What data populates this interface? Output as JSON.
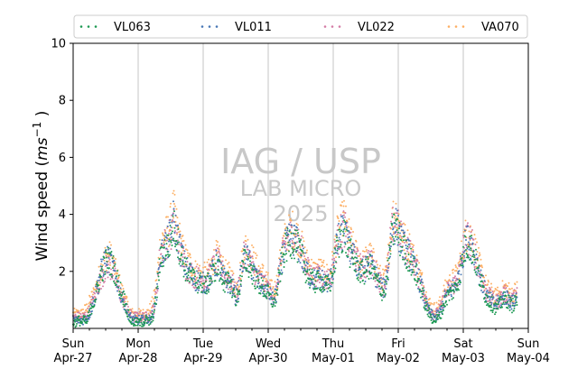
{
  "chart_data": {
    "type": "scatter",
    "title": "",
    "xlabel": "",
    "ylabel": "Wind speed ($ms^{-1}$)",
    "ylabel_parts": {
      "main": "Wind speed (",
      "base": "ms",
      "sup": "−1",
      "close": " )"
    },
    "ylim": [
      0,
      10
    ],
    "y_ticks": [
      2,
      4,
      6,
      8,
      10
    ],
    "xlim": [
      "2025-04-27 00:00",
      "2025-05-04 00:00"
    ],
    "x_ticks": [
      {
        "x": "2025-04-27",
        "day": "Sun",
        "date": "Apr-27"
      },
      {
        "x": "2025-04-28",
        "day": "Mon",
        "date": "Apr-28"
      },
      {
        "x": "2025-04-29",
        "day": "Tue",
        "date": "Apr-29"
      },
      {
        "x": "2025-04-30",
        "day": "Wed",
        "date": "Apr-30"
      },
      {
        "x": "2025-05-01",
        "day": "Thu",
        "date": "May-01"
      },
      {
        "x": "2025-05-02",
        "day": "Fri",
        "date": "May-02"
      },
      {
        "x": "2025-05-03",
        "day": "Sat",
        "date": "May-03"
      },
      {
        "x": "2025-05-04",
        "day": "Sun",
        "date": "May-04"
      }
    ],
    "grid": "vertical",
    "legend_position": "top",
    "watermark": {
      "line1": "IAG / USP",
      "line2": "LAB MICRO",
      "line3": "2025"
    },
    "x_hours": [
      0,
      1,
      2,
      3,
      4,
      5,
      6,
      7,
      8,
      9,
      10,
      11,
      12,
      13,
      14,
      15,
      16,
      17,
      18,
      19,
      20,
      21,
      22,
      23,
      24,
      25,
      26,
      27,
      28,
      29,
      30,
      31,
      32,
      33,
      34,
      35,
      36,
      37,
      38,
      39,
      40,
      41,
      42,
      43,
      44,
      45,
      46,
      47,
      48,
      49,
      50,
      51,
      52,
      53,
      54,
      55,
      56,
      57,
      58,
      59,
      60,
      61,
      62,
      63,
      64,
      65,
      66,
      67,
      68,
      69,
      70,
      71,
      72,
      73,
      74,
      75,
      76,
      77,
      78,
      79,
      80,
      81,
      82,
      83,
      84,
      85,
      86,
      87,
      88,
      89,
      90,
      91,
      92,
      93,
      94,
      95,
      96,
      97,
      98,
      99,
      100,
      101,
      102,
      103,
      104,
      105,
      106,
      107,
      108,
      109,
      110,
      111,
      112,
      113,
      114,
      115,
      116,
      117,
      118,
      119,
      120,
      121,
      122,
      123,
      124,
      125,
      126,
      127,
      128,
      129,
      130,
      131,
      132,
      133,
      134,
      135,
      136,
      137,
      138,
      139,
      140,
      141,
      142,
      143,
      144,
      145,
      146,
      147,
      148,
      149,
      150,
      151,
      152,
      153,
      154,
      155,
      156,
      157,
      158,
      159,
      160,
      161,
      162,
      163,
      164,
      165,
      166,
      167,
      168
    ],
    "series": [
      {
        "name": "VL063",
        "color": "#1a9850",
        "values": [
          0.2,
          0.2,
          0.3,
          0.2,
          0.3,
          0.2,
          0.5,
          0.8,
          1.0,
          1.4,
          1.8,
          2.1,
          2.3,
          2.4,
          2.3,
          2.1,
          1.8,
          1.5,
          1.2,
          1.0,
          0.6,
          0.3,
          0.2,
          0.2,
          0.2,
          0.2,
          0.2,
          0.3,
          0.2,
          0.3,
          0.6,
          1.3,
          2.3,
          2.6,
          2.8,
          2.9,
          3.1,
          3.6,
          3.3,
          2.9,
          2.5,
          2.2,
          2.0,
          1.9,
          1.8,
          1.7,
          1.6,
          1.6,
          1.5,
          1.5,
          1.6,
          1.8,
          2.0,
          2.2,
          2.0,
          1.8,
          1.6,
          1.6,
          1.6,
          1.3,
          1.0,
          1.2,
          1.8,
          2.3,
          2.4,
          2.2,
          2.0,
          1.8,
          1.6,
          1.5,
          1.4,
          1.3,
          1.2,
          1.0,
          0.9,
          1.1,
          1.7,
          2.3,
          2.7,
          2.9,
          3.0,
          3.1,
          3.0,
          2.8,
          2.6,
          2.3,
          2.0,
          1.8,
          1.7,
          1.6,
          1.6,
          1.7,
          1.6,
          1.5,
          1.5,
          1.6,
          2.0,
          2.6,
          3.0,
          3.2,
          3.4,
          3.0,
          2.7,
          2.5,
          2.3,
          2.1,
          2.0,
          1.9,
          2.0,
          2.2,
          2.1,
          1.9,
          1.7,
          1.5,
          1.3,
          1.3,
          1.8,
          2.8,
          3.4,
          3.6,
          3.3,
          3.0,
          2.8,
          2.6,
          2.5,
          2.3,
          2.0,
          1.8,
          1.5,
          1.2,
          0.8,
          0.6,
          0.4,
          0.3,
          0.3,
          0.4,
          0.6,
          0.9,
          1.1,
          1.2,
          1.3,
          1.4,
          1.6,
          2.0,
          2.6,
          2.9,
          3.0,
          2.8,
          2.5,
          2.2,
          1.8,
          1.5,
          1.2,
          1.0,
          0.9,
          0.8,
          0.7,
          0.8,
          0.9,
          1.0,
          1.0,
          0.9,
          0.8,
          0.9,
          1.0
        ]
      },
      {
        "name": "VL011",
        "color": "#4575b4",
        "values": [
          0.3,
          0.3,
          0.3,
          0.3,
          0.3,
          0.4,
          0.5,
          0.8,
          1.1,
          1.5,
          1.9,
          2.2,
          2.4,
          2.4,
          2.3,
          2.0,
          1.7,
          1.4,
          1.1,
          0.9,
          0.6,
          0.4,
          0.3,
          0.3,
          0.3,
          0.3,
          0.3,
          0.3,
          0.3,
          0.4,
          0.7,
          1.4,
          2.4,
          2.7,
          2.9,
          3.0,
          3.3,
          3.8,
          3.4,
          3.0,
          2.6,
          2.3,
          2.1,
          2.0,
          1.8,
          1.7,
          1.7,
          1.6,
          1.6,
          1.6,
          1.7,
          1.9,
          2.1,
          2.3,
          2.1,
          1.9,
          1.7,
          1.6,
          1.6,
          1.4,
          1.1,
          1.3,
          1.9,
          2.4,
          2.5,
          2.3,
          2.1,
          1.9,
          1.7,
          1.6,
          1.5,
          1.4,
          1.3,
          1.1,
          1.0,
          1.2,
          1.8,
          2.4,
          2.8,
          3.0,
          3.1,
          3.2,
          3.1,
          2.9,
          2.7,
          2.4,
          2.1,
          1.9,
          1.8,
          1.7,
          1.7,
          1.8,
          1.7,
          1.6,
          1.6,
          1.7,
          2.1,
          2.7,
          3.1,
          3.3,
          3.5,
          3.1,
          2.8,
          2.6,
          2.4,
          2.2,
          2.1,
          2.0,
          2.1,
          2.3,
          2.2,
          2.0,
          1.8,
          1.6,
          1.4,
          1.4,
          1.9,
          2.9,
          3.5,
          3.7,
          3.4,
          3.1,
          2.9,
          2.7,
          2.6,
          2.4,
          2.1,
          1.9,
          1.6,
          1.3,
          0.9,
          0.7,
          0.5,
          0.4,
          0.4,
          0.5,
          0.7,
          1.0,
          1.2,
          1.3,
          1.4,
          1.5,
          1.7,
          2.1,
          2.7,
          3.0,
          3.1,
          2.9,
          2.6,
          2.3,
          1.9,
          1.6,
          1.3,
          1.1,
          1.0,
          0.9,
          0.8,
          0.9,
          1.0,
          1.1,
          1.1,
          1.0,
          0.9,
          1.0,
          1.1
        ]
      },
      {
        "name": "VL022",
        "color": "#d47ba4",
        "values": [
          0.4,
          0.4,
          0.4,
          0.4,
          0.4,
          0.5,
          0.6,
          0.9,
          1.1,
          1.4,
          1.7,
          1.9,
          2.1,
          2.2,
          2.1,
          1.9,
          1.6,
          1.3,
          1.1,
          0.9,
          0.6,
          0.5,
          0.4,
          0.4,
          0.4,
          0.4,
          0.4,
          0.4,
          0.4,
          0.5,
          0.8,
          1.5,
          2.5,
          2.8,
          3.0,
          3.1,
          3.3,
          3.6,
          3.3,
          3.0,
          2.6,
          2.3,
          2.1,
          2.0,
          1.9,
          1.8,
          1.8,
          1.7,
          1.7,
          1.7,
          1.8,
          2.0,
          2.2,
          2.4,
          2.2,
          2.0,
          1.8,
          1.7,
          1.7,
          1.5,
          1.2,
          1.4,
          2.0,
          2.5,
          2.6,
          2.4,
          2.2,
          2.0,
          1.8,
          1.7,
          1.6,
          1.5,
          1.4,
          1.2,
          1.1,
          1.3,
          1.9,
          2.5,
          2.9,
          3.1,
          3.2,
          3.3,
          3.2,
          3.0,
          2.8,
          2.5,
          2.2,
          2.0,
          1.9,
          1.8,
          1.8,
          1.9,
          1.8,
          1.7,
          1.7,
          1.8,
          2.2,
          2.8,
          3.2,
          3.4,
          3.6,
          3.2,
          2.9,
          2.7,
          2.5,
          2.3,
          2.2,
          2.1,
          2.2,
          2.4,
          2.3,
          2.1,
          1.9,
          1.7,
          1.5,
          1.5,
          2.0,
          3.0,
          3.6,
          3.8,
          3.5,
          3.2,
          3.0,
          2.8,
          2.7,
          2.5,
          2.2,
          2.0,
          1.7,
          1.4,
          1.0,
          0.8,
          0.6,
          0.5,
          0.5,
          0.6,
          0.8,
          1.1,
          1.3,
          1.4,
          1.5,
          1.6,
          1.8,
          2.2,
          2.8,
          3.1,
          3.2,
          3.0,
          2.7,
          2.4,
          2.0,
          1.7,
          1.4,
          1.2,
          1.1,
          1.0,
          0.9,
          1.0,
          1.1,
          1.2,
          1.2,
          1.1,
          1.0,
          1.1,
          1.2
        ]
      },
      {
        "name": "VA070",
        "color": "#fdae61",
        "values": [
          0.5,
          0.5,
          0.5,
          0.5,
          0.6,
          0.7,
          0.9,
          1.1,
          1.3,
          1.6,
          2.0,
          2.3,
          2.5,
          2.6,
          2.5,
          2.2,
          1.9,
          1.6,
          1.3,
          1.1,
          0.8,
          0.6,
          0.5,
          0.5,
          0.5,
          0.5,
          0.5,
          0.5,
          0.6,
          0.8,
          1.1,
          1.8,
          2.8,
          3.1,
          3.3,
          3.4,
          3.7,
          4.2,
          3.7,
          3.3,
          2.9,
          2.6,
          2.4,
          2.3,
          2.1,
          2.0,
          2.0,
          1.9,
          1.9,
          1.9,
          2.0,
          2.2,
          2.4,
          2.6,
          2.4,
          2.2,
          2.0,
          1.9,
          1.9,
          1.7,
          1.4,
          1.6,
          2.2,
          2.8,
          2.9,
          2.7,
          2.5,
          2.3,
          2.1,
          2.0,
          1.9,
          1.8,
          1.6,
          1.4,
          1.3,
          1.5,
          2.1,
          2.7,
          3.1,
          3.3,
          3.4,
          3.5,
          3.4,
          3.2,
          3.0,
          2.7,
          2.4,
          2.2,
          2.1,
          2.0,
          2.0,
          2.1,
          2.0,
          1.9,
          1.9,
          2.0,
          2.4,
          3.1,
          3.5,
          3.7,
          3.9,
          3.5,
          3.2,
          2.9,
          2.7,
          2.5,
          2.4,
          2.3,
          2.4,
          2.6,
          2.5,
          2.3,
          2.1,
          1.9,
          1.7,
          1.7,
          2.2,
          3.2,
          3.9,
          4.1,
          3.8,
          3.5,
          3.2,
          3.0,
          2.9,
          2.7,
          2.4,
          2.2,
          1.9,
          1.6,
          1.2,
          1.0,
          0.8,
          0.7,
          0.7,
          0.8,
          1.0,
          1.3,
          1.5,
          1.6,
          1.7,
          1.8,
          2.0,
          2.4,
          3.0,
          3.3,
          3.4,
          3.2,
          2.9,
          2.6,
          2.2,
          1.9,
          1.6,
          1.4,
          1.3,
          1.2,
          1.1,
          1.2,
          1.3,
          1.4,
          1.4,
          1.3,
          1.2,
          1.3,
          1.4
        ]
      }
    ]
  }
}
